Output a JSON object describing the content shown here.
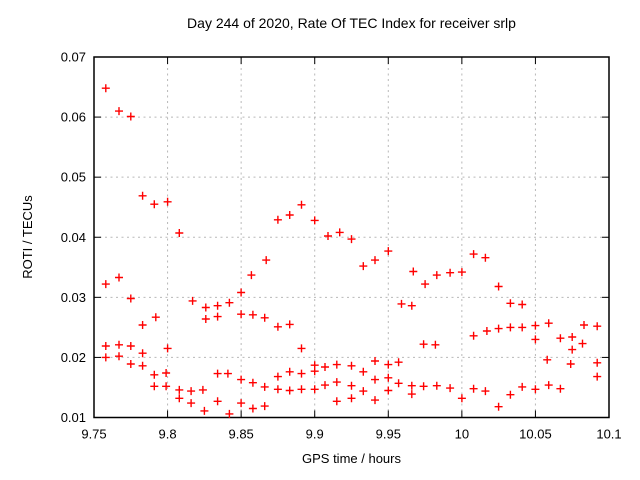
{
  "page": {
    "background": "#ffffff"
  },
  "chart_data": {
    "type": "scatter",
    "title": "Day 244 of 2020, Rate Of TEC Index for receiver srlp",
    "xlabel": "GPS time / hours",
    "ylabel": "ROTI / TECUs",
    "xlim": [
      9.75,
      10.1
    ],
    "ylim": [
      0.01,
      0.07
    ],
    "x_ticks": [
      9.75,
      9.8,
      9.85,
      9.9,
      9.95,
      10,
      10.05,
      10.1
    ],
    "x_tick_labels": [
      "9.75",
      "9.8",
      "9.85",
      "9.9",
      "9.95",
      "10",
      "10.05",
      "10.1"
    ],
    "y_ticks": [
      0.01,
      0.02,
      0.03,
      0.04,
      0.05,
      0.06,
      0.07
    ],
    "y_tick_labels": [
      "0.01",
      "0.02",
      "0.03",
      "0.04",
      "0.05",
      "0.06",
      "0.07"
    ],
    "grid": {
      "visible": true,
      "style": "dashed",
      "color": "#b8b8b8"
    },
    "legend": "none",
    "axis_color": "#000000",
    "marker": {
      "shape": "plus",
      "color": "#ff0000",
      "size": 8
    },
    "series_name": "ROTI",
    "points": [
      [
        9.758,
        0.0648
      ],
      [
        9.758,
        0.0322
      ],
      [
        9.758,
        0.0219
      ],
      [
        9.758,
        0.02
      ],
      [
        9.767,
        0.061
      ],
      [
        9.767,
        0.0333
      ],
      [
        9.767,
        0.0221
      ],
      [
        9.767,
        0.0202
      ],
      [
        9.775,
        0.0601
      ],
      [
        9.775,
        0.0298
      ],
      [
        9.775,
        0.0219
      ],
      [
        9.775,
        0.0189
      ],
      [
        9.783,
        0.0469
      ],
      [
        9.783,
        0.0254
      ],
      [
        9.783,
        0.0207
      ],
      [
        9.783,
        0.0186
      ],
      [
        9.791,
        0.0455
      ],
      [
        9.791,
        0.0171
      ],
      [
        9.791,
        0.0152
      ],
      [
        9.792,
        0.0267
      ],
      [
        9.799,
        0.0174
      ],
      [
        9.799,
        0.0152
      ],
      [
        9.8,
        0.0459
      ],
      [
        9.8,
        0.0215
      ],
      [
        9.808,
        0.0407
      ],
      [
        9.808,
        0.0146
      ],
      [
        9.808,
        0.0132
      ],
      [
        9.816,
        0.0144
      ],
      [
        9.816,
        0.0124
      ],
      [
        9.817,
        0.0294
      ],
      [
        9.824,
        0.0146
      ],
      [
        9.825,
        0.0111
      ],
      [
        9.826,
        0.0283
      ],
      [
        9.826,
        0.0264
      ],
      [
        9.834,
        0.0286
      ],
      [
        9.834,
        0.0268
      ],
      [
        9.834,
        0.0173
      ],
      [
        9.834,
        0.0127
      ],
      [
        9.841,
        0.0173
      ],
      [
        9.842,
        0.0291
      ],
      [
        9.842,
        0.0106
      ],
      [
        9.85,
        0.0308
      ],
      [
        9.85,
        0.0272
      ],
      [
        9.85,
        0.0163
      ],
      [
        9.85,
        0.0124
      ],
      [
        9.857,
        0.0337
      ],
      [
        9.858,
        0.0271
      ],
      [
        9.858,
        0.0158
      ],
      [
        9.858,
        0.0115
      ],
      [
        9.866,
        0.0266
      ],
      [
        9.866,
        0.0151
      ],
      [
        9.866,
        0.0119
      ],
      [
        9.867,
        0.0362
      ],
      [
        9.875,
        0.0429
      ],
      [
        9.875,
        0.0251
      ],
      [
        9.875,
        0.0168
      ],
      [
        9.875,
        0.0147
      ],
      [
        9.883,
        0.0437
      ],
      [
        9.883,
        0.0255
      ],
      [
        9.883,
        0.0176
      ],
      [
        9.883,
        0.0145
      ],
      [
        9.891,
        0.0454
      ],
      [
        9.891,
        0.0215
      ],
      [
        9.891,
        0.0173
      ],
      [
        9.891,
        0.0147
      ],
      [
        9.9,
        0.0428
      ],
      [
        9.9,
        0.0187
      ],
      [
        9.9,
        0.0177
      ],
      [
        9.9,
        0.0147
      ],
      [
        9.907,
        0.0184
      ],
      [
        9.907,
        0.0154
      ],
      [
        9.909,
        0.0402
      ],
      [
        9.915,
        0.0188
      ],
      [
        9.915,
        0.0159
      ],
      [
        9.915,
        0.0127
      ],
      [
        9.917,
        0.0408
      ],
      [
        9.925,
        0.0397
      ],
      [
        9.925,
        0.0186
      ],
      [
        9.925,
        0.0153
      ],
      [
        9.925,
        0.0132
      ],
      [
        9.933,
        0.0352
      ],
      [
        9.933,
        0.0176
      ],
      [
        9.933,
        0.0144
      ],
      [
        9.941,
        0.0362
      ],
      [
        9.941,
        0.0194
      ],
      [
        9.941,
        0.0163
      ],
      [
        9.941,
        0.0129
      ],
      [
        9.95,
        0.0377
      ],
      [
        9.95,
        0.0188
      ],
      [
        9.95,
        0.0166
      ],
      [
        9.95,
        0.0145
      ],
      [
        9.957,
        0.0192
      ],
      [
        9.957,
        0.0157
      ],
      [
        9.959,
        0.0289
      ],
      [
        9.966,
        0.0286
      ],
      [
        9.966,
        0.0153
      ],
      [
        9.966,
        0.0139
      ],
      [
        9.967,
        0.0343
      ],
      [
        9.974,
        0.0222
      ],
      [
        9.974,
        0.0152
      ],
      [
        9.975,
        0.0322
      ],
      [
        9.982,
        0.0221
      ],
      [
        9.983,
        0.0337
      ],
      [
        9.983,
        0.0153
      ],
      [
        9.992,
        0.0341
      ],
      [
        9.992,
        0.0149
      ],
      [
        10.0,
        0.0342
      ],
      [
        10.0,
        0.0132
      ],
      [
        10.008,
        0.0372
      ],
      [
        10.008,
        0.0236
      ],
      [
        10.008,
        0.0148
      ],
      [
        10.016,
        0.0366
      ],
      [
        10.016,
        0.0144
      ],
      [
        10.017,
        0.0244
      ],
      [
        10.025,
        0.0318
      ],
      [
        10.025,
        0.0248
      ],
      [
        10.025,
        0.0118
      ],
      [
        10.033,
        0.029
      ],
      [
        10.033,
        0.025
      ],
      [
        10.033,
        0.0138
      ],
      [
        10.041,
        0.0288
      ],
      [
        10.041,
        0.025
      ],
      [
        10.041,
        0.0151
      ],
      [
        10.05,
        0.0253
      ],
      [
        10.05,
        0.023
      ],
      [
        10.05,
        0.0147
      ],
      [
        10.058,
        0.0196
      ],
      [
        10.059,
        0.0257
      ],
      [
        10.059,
        0.0154
      ],
      [
        10.067,
        0.0232
      ],
      [
        10.067,
        0.0148
      ],
      [
        10.074,
        0.0189
      ],
      [
        10.075,
        0.0234
      ],
      [
        10.075,
        0.0213
      ],
      [
        10.082,
        0.0223
      ],
      [
        10.083,
        0.0254
      ],
      [
        10.092,
        0.0252
      ],
      [
        10.092,
        0.0191
      ],
      [
        10.092,
        0.0168
      ]
    ]
  }
}
